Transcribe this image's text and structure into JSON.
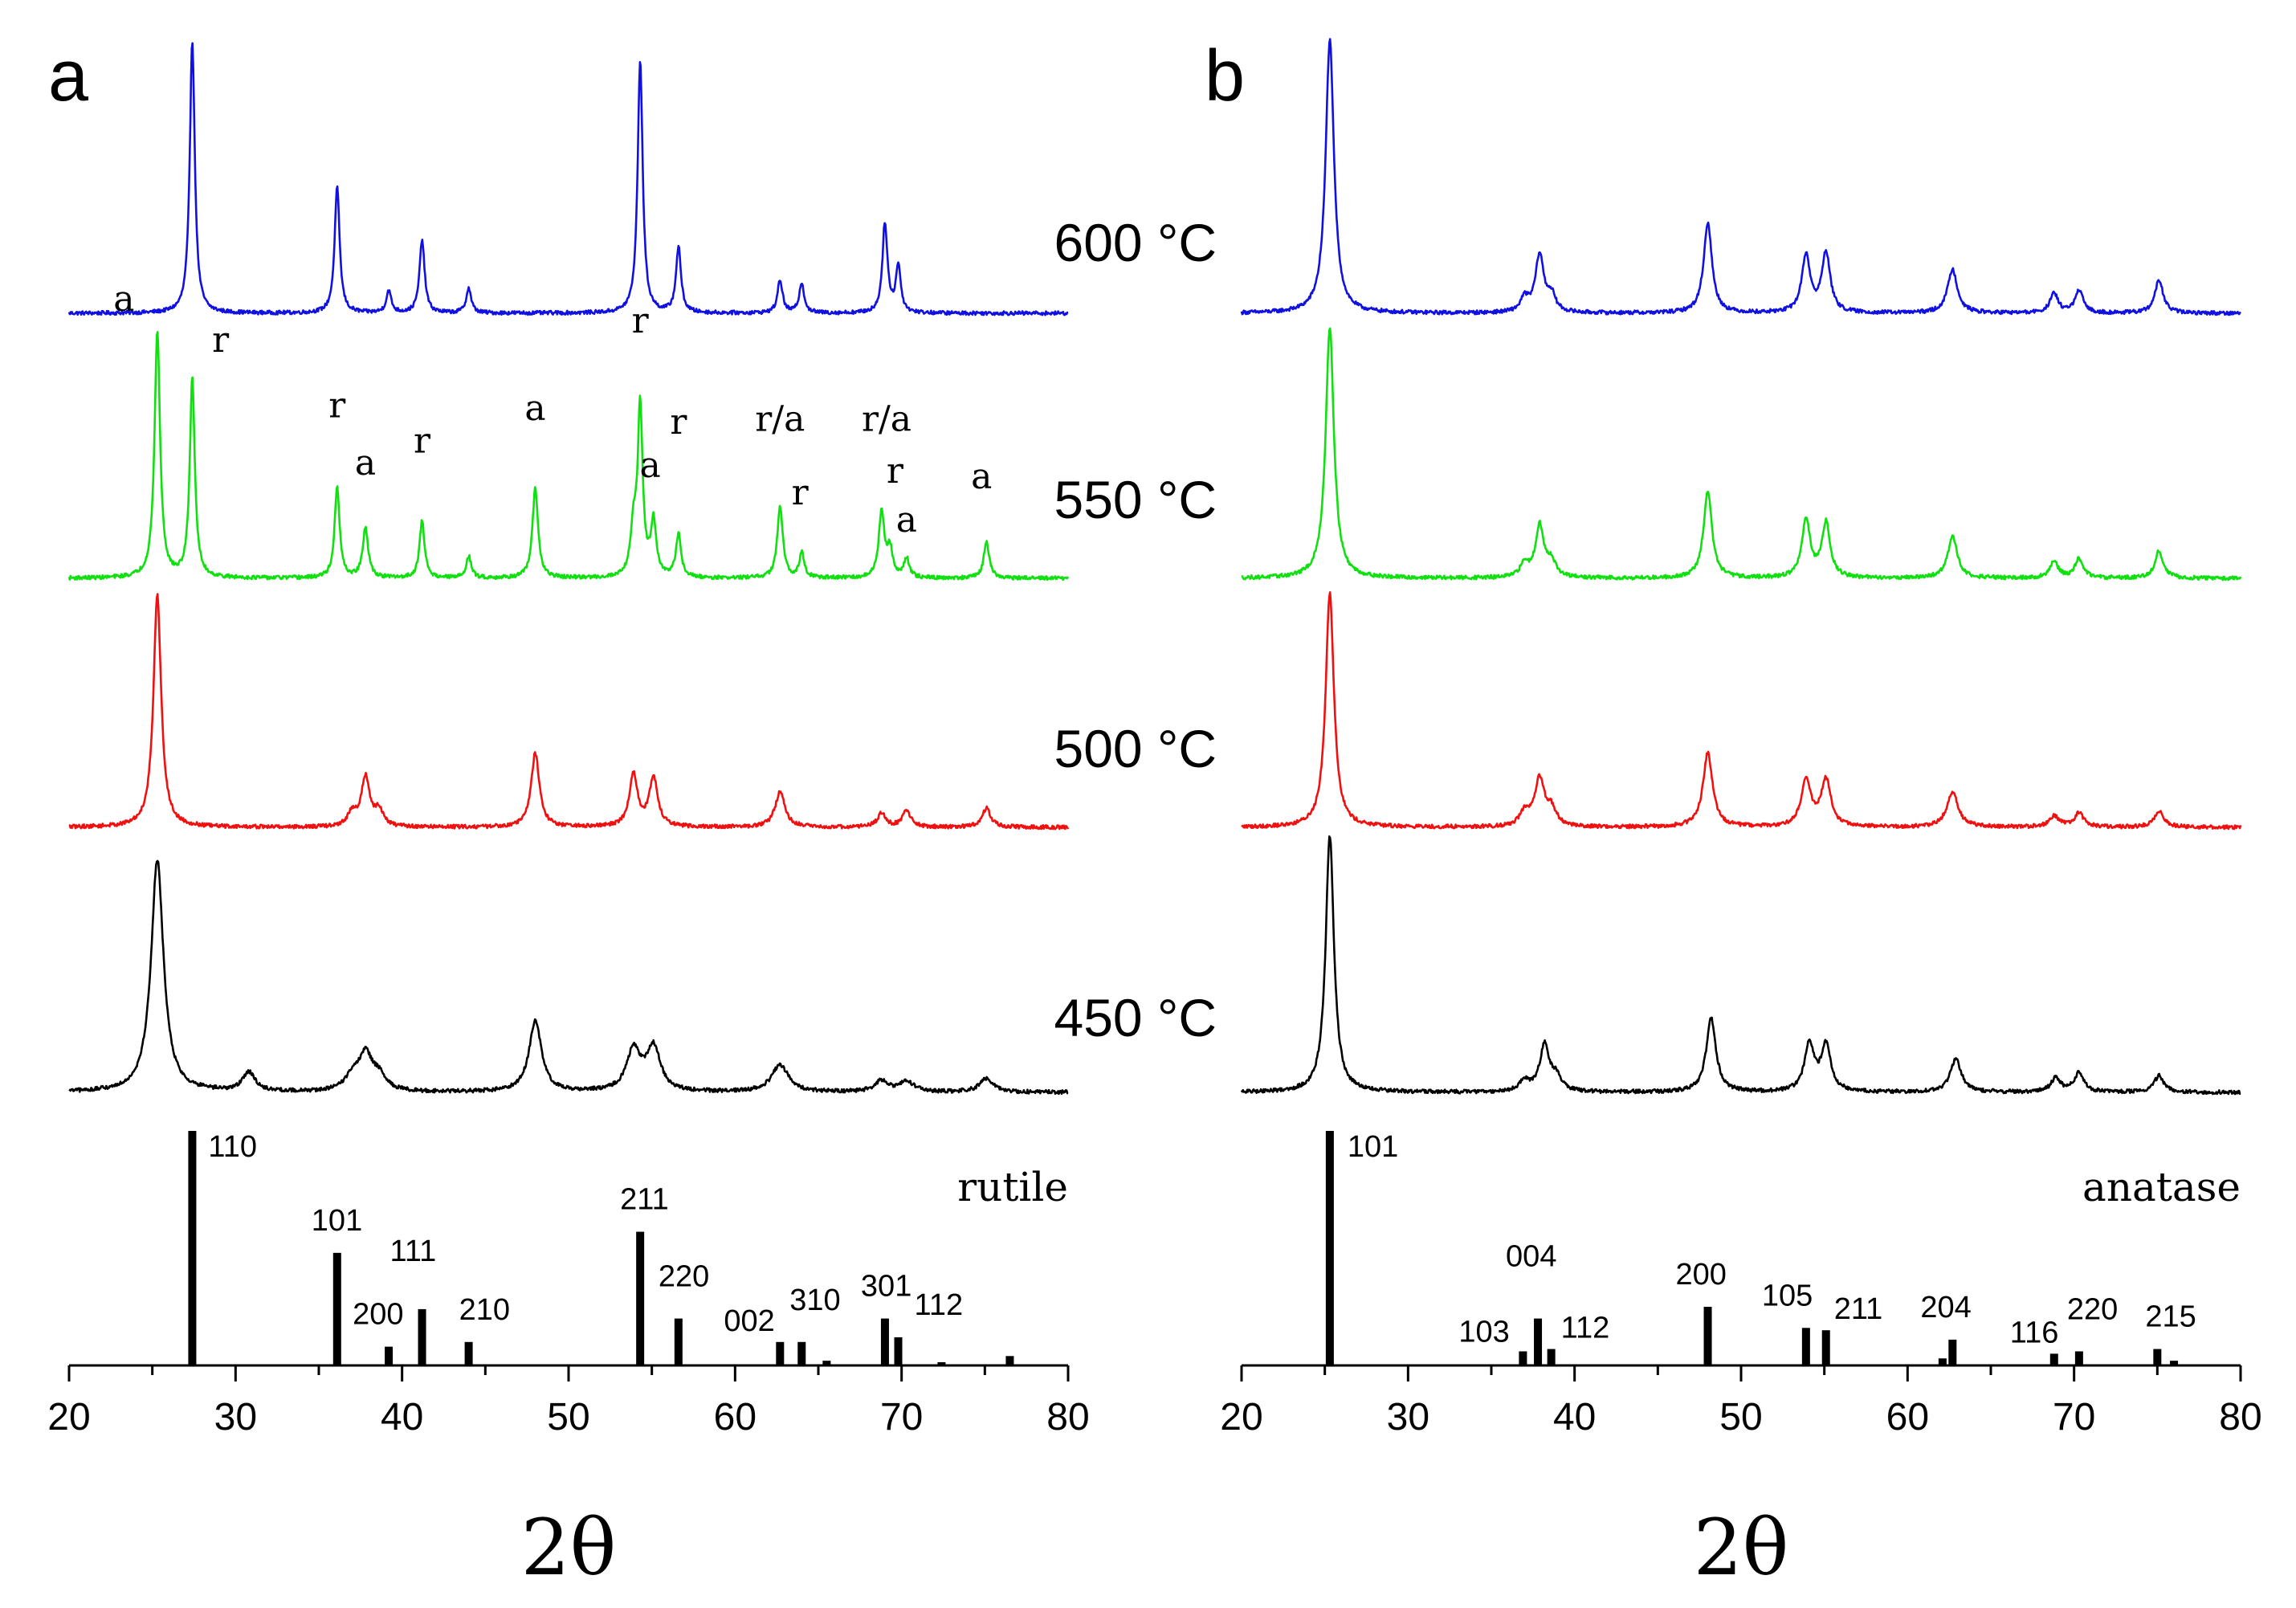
{
  "chart_data": [
    {
      "panel": "a",
      "type": "line",
      "reference_label": "rutile",
      "xlabel": "2θ",
      "xlim": [
        20,
        80
      ],
      "x_ticks": [
        20,
        30,
        40,
        50,
        60,
        70,
        80
      ],
      "series": [
        {
          "name": "600 °C",
          "label": "600 °C",
          "color": "#1010e0",
          "level": 3,
          "peaks": [
            [
              27.4,
              1.0,
              0.18
            ],
            [
              36.1,
              0.46,
              0.18
            ],
            [
              39.2,
              0.08,
              0.18
            ],
            [
              41.2,
              0.27,
              0.18
            ],
            [
              44.0,
              0.09,
              0.18
            ],
            [
              54.3,
              0.93,
              0.18
            ],
            [
              56.6,
              0.24,
              0.18
            ],
            [
              62.7,
              0.12,
              0.18
            ],
            [
              64.0,
              0.11,
              0.18
            ],
            [
              69.0,
              0.33,
              0.18
            ],
            [
              69.8,
              0.17,
              0.18
            ]
          ]
        },
        {
          "name": "550 °C",
          "label": "550 °C",
          "color": "#10e010",
          "level": 2,
          "peaks": [
            [
              25.3,
              0.9,
              0.2
            ],
            [
              27.4,
              0.73,
              0.18
            ],
            [
              36.1,
              0.33,
              0.18
            ],
            [
              37.8,
              0.18,
              0.2
            ],
            [
              41.2,
              0.21,
              0.18
            ],
            [
              44.0,
              0.08,
              0.18
            ],
            [
              48.0,
              0.33,
              0.2
            ],
            [
              53.9,
              0.17,
              0.2
            ],
            [
              54.3,
              0.62,
              0.18
            ],
            [
              55.1,
              0.2,
              0.2
            ],
            [
              56.6,
              0.16,
              0.18
            ],
            [
              62.7,
              0.26,
              0.2
            ],
            [
              64.0,
              0.09,
              0.18
            ],
            [
              68.8,
              0.24,
              0.2
            ],
            [
              69.3,
              0.1,
              0.2
            ],
            [
              70.3,
              0.07,
              0.2
            ],
            [
              75.1,
              0.13,
              0.2
            ]
          ]
        },
        {
          "name": "500 °C",
          "label": "500 °C",
          "color": "#f01010",
          "level": 1,
          "peaks": [
            [
              25.3,
              0.85,
              0.28
            ],
            [
              37.0,
              0.05,
              0.3
            ],
            [
              37.8,
              0.18,
              0.3
            ],
            [
              38.6,
              0.06,
              0.3
            ],
            [
              48.0,
              0.27,
              0.3
            ],
            [
              53.9,
              0.19,
              0.3
            ],
            [
              55.1,
              0.18,
              0.3
            ],
            [
              62.7,
              0.13,
              0.35
            ],
            [
              68.8,
              0.05,
              0.3
            ],
            [
              70.3,
              0.06,
              0.3
            ],
            [
              75.1,
              0.07,
              0.3
            ]
          ]
        },
        {
          "name": "450 °C",
          "label": "450 °C",
          "color": "#000000",
          "level": 0,
          "peaks": [
            [
              25.3,
              0.85,
              0.45
            ],
            [
              30.8,
              0.07,
              0.45
            ],
            [
              37.0,
              0.05,
              0.5
            ],
            [
              37.8,
              0.13,
              0.5
            ],
            [
              38.6,
              0.05,
              0.5
            ],
            [
              48.0,
              0.26,
              0.45
            ],
            [
              53.9,
              0.15,
              0.5
            ],
            [
              55.1,
              0.16,
              0.5
            ],
            [
              62.7,
              0.1,
              0.6
            ],
            [
              68.8,
              0.04,
              0.5
            ],
            [
              70.3,
              0.04,
              0.5
            ],
            [
              75.1,
              0.05,
              0.5
            ]
          ]
        }
      ],
      "phase_labels": [
        {
          "text": "a",
          "x": 23.3,
          "series": "550 °C",
          "h": 0.98
        },
        {
          "text": "r",
          "x": 29.1,
          "series": "550 °C",
          "h": 0.83
        },
        {
          "text": "r",
          "x": 36.1,
          "series": "550 °C",
          "h": 0.59
        },
        {
          "text": "a",
          "x": 37.8,
          "series": "550 °C",
          "h": 0.38
        },
        {
          "text": "r",
          "x": 41.2,
          "series": "550 °C",
          "h": 0.46
        },
        {
          "text": "a",
          "x": 48.0,
          "series": "550 °C",
          "h": 0.58
        },
        {
          "text": "r",
          "x": 54.3,
          "series": "550 °C",
          "h": 0.9
        },
        {
          "text": "a",
          "x": 54.9,
          "series": "550 °C",
          "h": 0.37
        },
        {
          "text": "r",
          "x": 56.6,
          "series": "550 °C",
          "h": 0.53
        },
        {
          "text": "r/a",
          "x": 62.7,
          "series": "550 °C",
          "h": 0.54
        },
        {
          "text": "r",
          "x": 63.9,
          "series": "550 °C",
          "h": 0.27
        },
        {
          "text": "r/a",
          "x": 69.1,
          "series": "550 °C",
          "h": 0.54
        },
        {
          "text": "r",
          "x": 69.6,
          "series": "550 °C",
          "h": 0.35
        },
        {
          "text": "a",
          "x": 70.3,
          "series": "550 °C",
          "h": 0.17
        },
        {
          "text": "a",
          "x": 74.8,
          "series": "550 °C",
          "h": 0.33
        }
      ],
      "reference_bars": [
        {
          "x": 27.4,
          "value": 100,
          "hkl": "110"
        },
        {
          "x": 36.1,
          "value": 48,
          "hkl": "101"
        },
        {
          "x": 39.2,
          "value": 8,
          "hkl": "200"
        },
        {
          "x": 41.2,
          "value": 24,
          "hkl": "111"
        },
        {
          "x": 44.0,
          "value": 10,
          "hkl": "210"
        },
        {
          "x": 54.3,
          "value": 57,
          "hkl": "211"
        },
        {
          "x": 56.6,
          "value": 20,
          "hkl": "220"
        },
        {
          "x": 62.7,
          "value": 10,
          "hkl": "002"
        },
        {
          "x": 64.0,
          "value": 10,
          "hkl": "310"
        },
        {
          "x": 65.5,
          "value": 2,
          "hkl": ""
        },
        {
          "x": 69.0,
          "value": 20,
          "hkl": "301"
        },
        {
          "x": 69.8,
          "value": 12,
          "hkl": "112"
        },
        {
          "x": 72.4,
          "value": 1,
          "hkl": ""
        },
        {
          "x": 76.5,
          "value": 4,
          "hkl": ""
        }
      ]
    },
    {
      "panel": "b",
      "type": "line",
      "reference_label": "anatase",
      "xlabel": "2θ",
      "xlim": [
        20,
        80
      ],
      "x_ticks": [
        20,
        30,
        40,
        50,
        60,
        70,
        80
      ],
      "series": [
        {
          "name": "600 °C",
          "color": "#1010e0",
          "level": 3,
          "peaks": [
            [
              25.3,
              1.0,
              0.3
            ],
            [
              37.0,
              0.05,
              0.3
            ],
            [
              37.9,
              0.21,
              0.3
            ],
            [
              38.6,
              0.06,
              0.3
            ],
            [
              48.0,
              0.33,
              0.3
            ],
            [
              53.9,
              0.21,
              0.3
            ],
            [
              55.1,
              0.22,
              0.3
            ],
            [
              62.7,
              0.16,
              0.35
            ],
            [
              68.8,
              0.07,
              0.3
            ],
            [
              70.3,
              0.08,
              0.3
            ],
            [
              75.1,
              0.12,
              0.3
            ]
          ]
        },
        {
          "name": "550 °C",
          "color": "#10e010",
          "level": 2,
          "peaks": [
            [
              25.3,
              0.92,
              0.3
            ],
            [
              37.0,
              0.05,
              0.3
            ],
            [
              37.9,
              0.19,
              0.3
            ],
            [
              38.6,
              0.06,
              0.3
            ],
            [
              48.0,
              0.32,
              0.3
            ],
            [
              53.9,
              0.21,
              0.3
            ],
            [
              55.1,
              0.2,
              0.3
            ],
            [
              62.7,
              0.15,
              0.35
            ],
            [
              68.8,
              0.06,
              0.3
            ],
            [
              70.3,
              0.07,
              0.3
            ],
            [
              75.1,
              0.1,
              0.3
            ]
          ]
        },
        {
          "name": "500 °C",
          "color": "#f01010",
          "level": 1,
          "peaks": [
            [
              25.3,
              0.86,
              0.3
            ],
            [
              37.0,
              0.05,
              0.35
            ],
            [
              37.9,
              0.17,
              0.35
            ],
            [
              38.6,
              0.06,
              0.35
            ],
            [
              48.0,
              0.27,
              0.35
            ],
            [
              53.9,
              0.17,
              0.35
            ],
            [
              55.1,
              0.17,
              0.35
            ],
            [
              62.7,
              0.13,
              0.4
            ],
            [
              68.8,
              0.04,
              0.35
            ],
            [
              70.3,
              0.05,
              0.35
            ],
            [
              75.1,
              0.06,
              0.35
            ]
          ]
        },
        {
          "name": "450 °C",
          "color": "#000000",
          "level": 0,
          "peaks": [
            [
              25.3,
              0.94,
              0.3
            ],
            [
              37.0,
              0.04,
              0.35
            ],
            [
              38.2,
              0.17,
              0.35
            ],
            [
              38.9,
              0.05,
              0.35
            ],
            [
              48.2,
              0.27,
              0.35
            ],
            [
              54.1,
              0.17,
              0.35
            ],
            [
              55.1,
              0.17,
              0.35
            ],
            [
              62.9,
              0.12,
              0.4
            ],
            [
              68.9,
              0.05,
              0.35
            ],
            [
              70.3,
              0.07,
              0.35
            ],
            [
              75.1,
              0.06,
              0.35
            ]
          ]
        }
      ],
      "reference_bars": [
        {
          "x": 25.3,
          "value": 100,
          "hkl": "101"
        },
        {
          "x": 36.9,
          "value": 6,
          "hkl": "103"
        },
        {
          "x": 37.8,
          "value": 20,
          "hkl": "004"
        },
        {
          "x": 38.6,
          "value": 7,
          "hkl": "112"
        },
        {
          "x": 48.0,
          "value": 25,
          "hkl": "200"
        },
        {
          "x": 53.9,
          "value": 16,
          "hkl": "105"
        },
        {
          "x": 55.1,
          "value": 15,
          "hkl": "211"
        },
        {
          "x": 62.1,
          "value": 3,
          "hkl": ""
        },
        {
          "x": 62.7,
          "value": 11,
          "hkl": "204"
        },
        {
          "x": 68.8,
          "value": 5,
          "hkl": "116"
        },
        {
          "x": 70.3,
          "value": 6,
          "hkl": "220"
        },
        {
          "x": 75.0,
          "value": 7,
          "hkl": "215"
        },
        {
          "x": 76.0,
          "value": 2,
          "hkl": ""
        }
      ]
    }
  ]
}
